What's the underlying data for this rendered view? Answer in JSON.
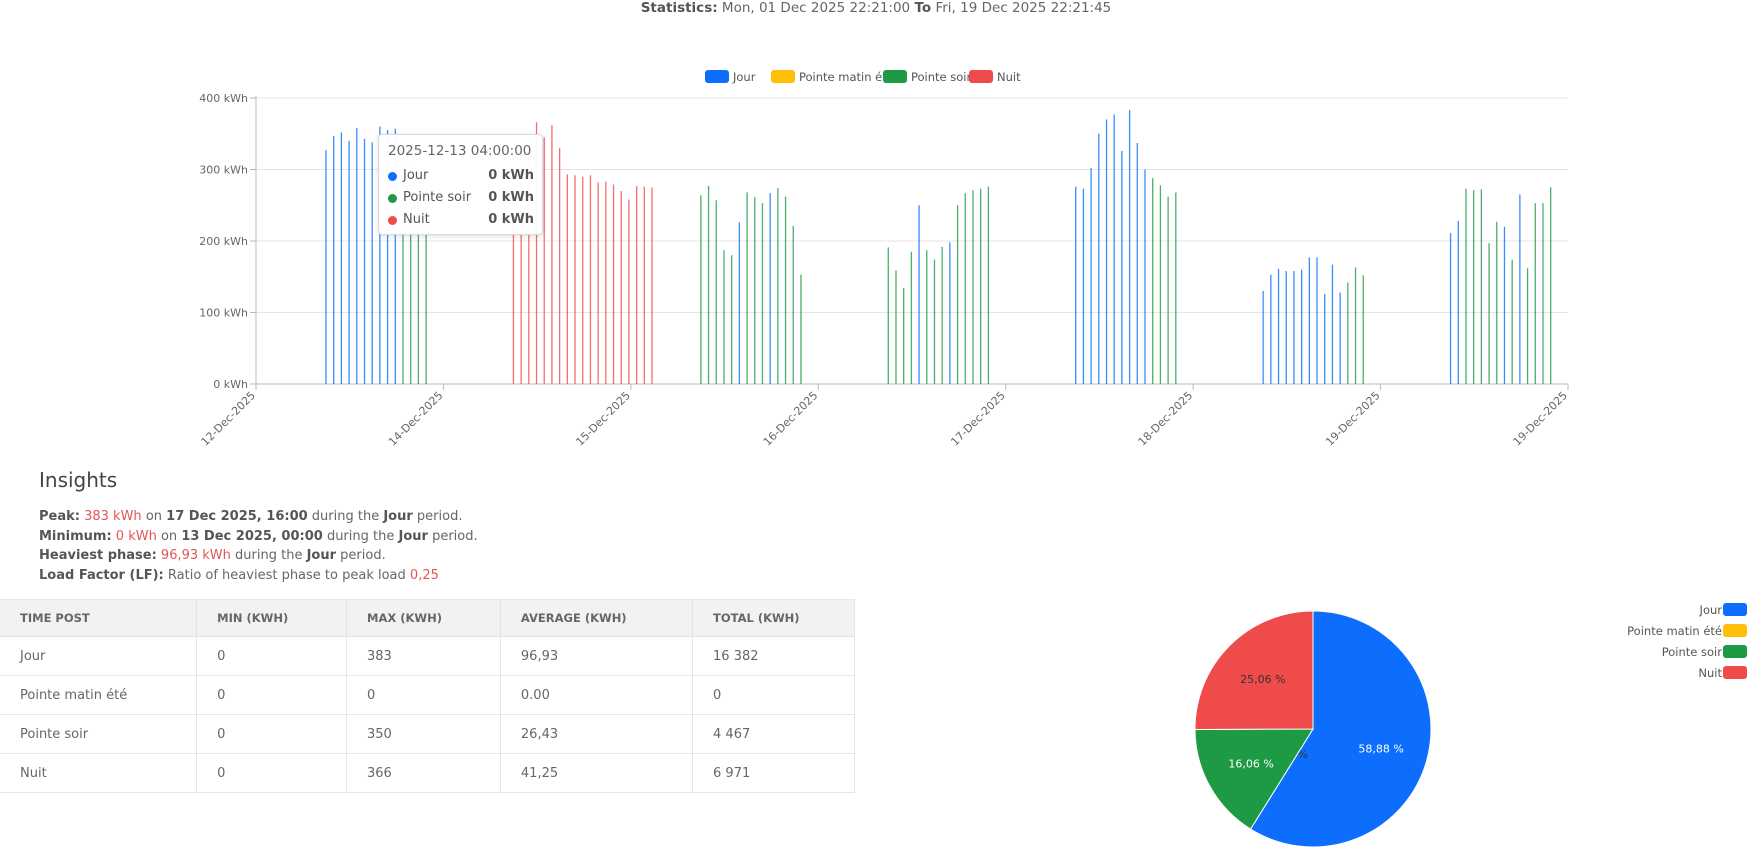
{
  "header": {
    "statistics_label": "Statistics:",
    "from_text": "Mon, 01 Dec 2025 22:21:00",
    "to_label": "To",
    "to_text": "Fri, 19 Dec 2025 22:21:45"
  },
  "colors": {
    "Jour": "#0d6efd",
    "Pointe matin été": "#ffc107",
    "Pointe soir": "#1e9a45",
    "Nuit": "#f04b4b"
  },
  "chart_data": [
    {
      "type": "bar",
      "legend": [
        "Jour",
        "Pointe matin été",
        "Pointe soir",
        "Nuit"
      ],
      "legend_position": "top-center",
      "ylim": [
        0,
        400
      ],
      "y_ticks": [
        "0 kWh",
        "100 kWh",
        "200 kWh",
        "300 kWh",
        "400 kWh"
      ],
      "x_ticks": [
        "12-Dec-2025",
        "14-Dec-2025",
        "15-Dec-2025",
        "16-Dec-2025",
        "17-Dec-2025",
        "18-Dec-2025",
        "19-Dec-2025",
        "19-Dec-2025"
      ],
      "grid": true,
      "bar_groups": [
        {
          "day": "12-Dec-2025",
          "bars": [
            {
              "s": "Jour",
              "v": 327
            },
            {
              "s": "Jour",
              "v": 347
            },
            {
              "s": "Jour",
              "v": 352
            },
            {
              "s": "Jour",
              "v": 340
            },
            {
              "s": "Jour",
              "v": 358
            },
            {
              "s": "Jour",
              "v": 343
            },
            {
              "s": "Jour",
              "v": 338
            },
            {
              "s": "Jour",
              "v": 360
            },
            {
              "s": "Jour",
              "v": 355
            },
            {
              "s": "Jour",
              "v": 357
            },
            {
              "s": "Pointe soir",
              "v": 320
            },
            {
              "s": "Pointe soir",
              "v": 305
            },
            {
              "s": "Pointe soir",
              "v": 300
            },
            {
              "s": "Pointe soir",
              "v": 300
            }
          ]
        },
        {
          "day": "14-Dec-2025",
          "bars": [
            {
              "s": "Nuit",
              "v": 300
            },
            {
              "s": "Nuit",
              "v": 330
            },
            {
              "s": "Nuit",
              "v": 340
            },
            {
              "s": "Nuit",
              "v": 366
            },
            {
              "s": "Nuit",
              "v": 345
            },
            {
              "s": "Nuit",
              "v": 362
            },
            {
              "s": "Nuit",
              "v": 330
            },
            {
              "s": "Nuit",
              "v": 293
            },
            {
              "s": "Nuit",
              "v": 292
            },
            {
              "s": "Nuit",
              "v": 290
            },
            {
              "s": "Nuit",
              "v": 292
            },
            {
              "s": "Nuit",
              "v": 282
            },
            {
              "s": "Nuit",
              "v": 283
            },
            {
              "s": "Nuit",
              "v": 279
            },
            {
              "s": "Nuit",
              "v": 270
            },
            {
              "s": "Nuit",
              "v": 258
            },
            {
              "s": "Nuit",
              "v": 277
            },
            {
              "s": "Nuit",
              "v": 276
            },
            {
              "s": "Nuit",
              "v": 275
            }
          ]
        },
        {
          "day": "15-Dec-2025",
          "bars": [
            {
              "s": "Pointe soir",
              "v": 264
            },
            {
              "s": "Pointe soir",
              "v": 277
            },
            {
              "s": "Pointe soir",
              "v": 257
            },
            {
              "s": "Pointe soir",
              "v": 187
            },
            {
              "s": "Pointe soir",
              "v": 180
            },
            {
              "s": "Jour",
              "v": 226
            },
            {
              "s": "Pointe soir",
              "v": 268
            },
            {
              "s": "Pointe soir",
              "v": 261
            },
            {
              "s": "Pointe soir",
              "v": 253
            },
            {
              "s": "Jour",
              "v": 267
            },
            {
              "s": "Pointe soir",
              "v": 274
            },
            {
              "s": "Pointe soir",
              "v": 262
            },
            {
              "s": "Pointe soir",
              "v": 221
            },
            {
              "s": "Pointe soir",
              "v": 153
            }
          ]
        },
        {
          "day": "16-Dec-2025",
          "bars": [
            {
              "s": "Pointe soir",
              "v": 191
            },
            {
              "s": "Pointe soir",
              "v": 159
            },
            {
              "s": "Pointe soir",
              "v": 134
            },
            {
              "s": "Pointe soir",
              "v": 185
            },
            {
              "s": "Jour",
              "v": 250
            },
            {
              "s": "Pointe soir",
              "v": 187
            },
            {
              "s": "Pointe soir",
              "v": 174
            },
            {
              "s": "Pointe soir",
              "v": 192
            },
            {
              "s": "Jour",
              "v": 198
            },
            {
              "s": "Pointe soir",
              "v": 250
            },
            {
              "s": "Pointe soir",
              "v": 267
            },
            {
              "s": "Pointe soir",
              "v": 271
            },
            {
              "s": "Pointe soir",
              "v": 273
            },
            {
              "s": "Pointe soir",
              "v": 276
            }
          ]
        },
        {
          "day": "17-Dec-2025",
          "bars": [
            {
              "s": "Jour",
              "v": 276
            },
            {
              "s": "Jour",
              "v": 273
            },
            {
              "s": "Jour",
              "v": 302
            },
            {
              "s": "Jour",
              "v": 350
            },
            {
              "s": "Jour",
              "v": 370
            },
            {
              "s": "Jour",
              "v": 377
            },
            {
              "s": "Jour",
              "v": 326
            },
            {
              "s": "Jour",
              "v": 383
            },
            {
              "s": "Jour",
              "v": 337
            },
            {
              "s": "Jour",
              "v": 300
            },
            {
              "s": "Pointe soir",
              "v": 288
            },
            {
              "s": "Pointe soir",
              "v": 278
            },
            {
              "s": "Pointe soir",
              "v": 262
            },
            {
              "s": "Pointe soir",
              "v": 268
            }
          ]
        },
        {
          "day": "18-Dec-2025",
          "bars": [
            {
              "s": "Jour",
              "v": 130
            },
            {
              "s": "Jour",
              "v": 153
            },
            {
              "s": "Jour",
              "v": 161
            },
            {
              "s": "Jour",
              "v": 158
            },
            {
              "s": "Jour",
              "v": 158
            },
            {
              "s": "Jour",
              "v": 160
            },
            {
              "s": "Jour",
              "v": 177
            },
            {
              "s": "Jour",
              "v": 177
            },
            {
              "s": "Jour",
              "v": 126
            },
            {
              "s": "Jour",
              "v": 167
            },
            {
              "s": "Jour",
              "v": 128
            },
            {
              "s": "Pointe soir",
              "v": 142
            },
            {
              "s": "Pointe soir",
              "v": 163
            },
            {
              "s": "Pointe soir",
              "v": 152
            }
          ]
        },
        {
          "day": "19-Dec-2025",
          "bars": [
            {
              "s": "Jour",
              "v": 211
            },
            {
              "s": "Jour",
              "v": 228
            },
            {
              "s": "Pointe soir",
              "v": 273
            },
            {
              "s": "Pointe soir",
              "v": 271
            },
            {
              "s": "Pointe soir",
              "v": 272
            },
            {
              "s": "Pointe soir",
              "v": 197
            },
            {
              "s": "Pointe soir",
              "v": 227
            },
            {
              "s": "Jour",
              "v": 220
            },
            {
              "s": "Pointe soir",
              "v": 174
            },
            {
              "s": "Jour",
              "v": 265
            },
            {
              "s": "Pointe soir",
              "v": 162
            },
            {
              "s": "Pointe soir",
              "v": 253
            },
            {
              "s": "Pointe soir",
              "v": 253
            },
            {
              "s": "Pointe soir",
              "v": 275
            }
          ]
        }
      ],
      "tooltip": {
        "title": "2025-12-13 04:00:00",
        "rows": [
          {
            "name": "Jour",
            "value": "0 kWh"
          },
          {
            "name": "Pointe soir",
            "value": "0 kWh"
          },
          {
            "name": "Nuit",
            "value": "0 kWh"
          }
        ]
      }
    },
    {
      "type": "pie",
      "legend_position": "top-right",
      "slices": [
        {
          "name": "Jour",
          "value": 58.88,
          "label": "58,88 %"
        },
        {
          "name": "Pointe matin été",
          "value": 0,
          "label": "0 %"
        },
        {
          "name": "Pointe soir",
          "value": 16.06,
          "label": "16,06 %"
        },
        {
          "name": "Nuit",
          "value": 25.06,
          "label": "25,06 %"
        }
      ]
    }
  ],
  "insights": {
    "title": "Insights",
    "peak_label": "Peak:",
    "peak_value": "383 kWh",
    "peak_on": "on",
    "peak_date": "17 Dec 2025, 16:00",
    "peak_during": "during the",
    "peak_phase": "Jour",
    "peak_period": "period.",
    "min_label": "Minimum:",
    "min_value": "0 kWh",
    "min_on": "on",
    "min_date": "13 Dec 2025, 00:00",
    "min_during": "during the",
    "min_phase": "Jour",
    "min_period": "period.",
    "heavy_label": "Heaviest phase:",
    "heavy_value": "96,93 kWh",
    "heavy_during": "during the",
    "heavy_phase": "Jour",
    "heavy_period": "period.",
    "lf_label": "Load Factor (LF):",
    "lf_text": "Ratio of heaviest phase to peak load",
    "lf_value": "0,25"
  },
  "table": {
    "headers": [
      "TIME POST",
      "MIN (KWH)",
      "MAX (KWH)",
      "AVERAGE (KWH)",
      "TOTAL (KWH)"
    ],
    "rows": [
      [
        "Jour",
        "0",
        "383",
        "96,93",
        "16 382"
      ],
      [
        "Pointe matin été",
        "0",
        "0",
        "0.00",
        "0"
      ],
      [
        "Pointe soir",
        "0",
        "350",
        "26,43",
        "4 467"
      ],
      [
        "Nuit",
        "0",
        "366",
        "41,25",
        "6 971"
      ]
    ]
  }
}
